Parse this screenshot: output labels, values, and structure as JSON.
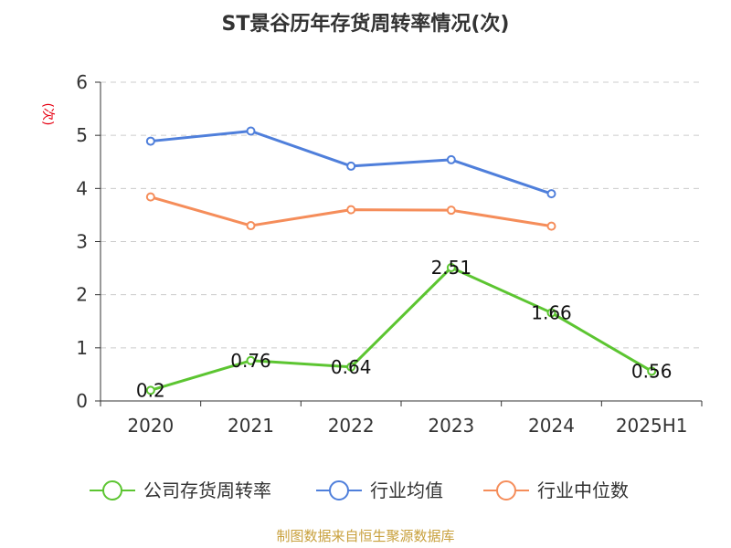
{
  "chart_data": {
    "type": "line",
    "title": "ST景谷历年存货周转率情况(次)",
    "ylabel": "(次)",
    "categories": [
      "2020",
      "2021",
      "2022",
      "2023",
      "2024",
      "2025H1"
    ],
    "ylim": [
      0,
      6
    ],
    "yticks": [
      "0",
      "1",
      "2",
      "3",
      "4",
      "5",
      "6"
    ],
    "grid": true,
    "legend_position": "bottom",
    "series": [
      {
        "name": "公司存货周转率",
        "color": "#5cc531",
        "values": [
          0.2,
          0.76,
          0.64,
          2.51,
          1.66,
          0.56
        ],
        "labels": [
          "0.2",
          "0.76",
          "0.64",
          "2.51",
          "1.66",
          "0.56"
        ]
      },
      {
        "name": "行业均值",
        "color": "#4f7fdb",
        "values": [
          4.89,
          5.08,
          4.42,
          4.54,
          3.9,
          null
        ]
      },
      {
        "name": "行业中位数",
        "color": "#f58d5a",
        "values": [
          3.84,
          3.3,
          3.6,
          3.59,
          3.29,
          null
        ]
      }
    ]
  },
  "ylabel_color": "#e60012",
  "source": {
    "text": "制图数据来自恒生聚源数据库",
    "color": "#c8a03c"
  }
}
